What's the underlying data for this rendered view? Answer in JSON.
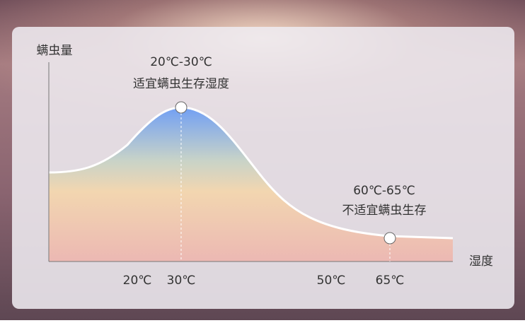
{
  "y_axis_label": "螨虫量",
  "x_axis_label": "湿度",
  "x_ticks": [
    "20℃",
    "30℃",
    "50℃",
    "65℃"
  ],
  "annotations": [
    {
      "range": "20℃-30℃",
      "text": "适宜螨虫生存湿度"
    },
    {
      "range": "60℃-65℃",
      "text": "不适宜螨虫生存"
    }
  ]
}
